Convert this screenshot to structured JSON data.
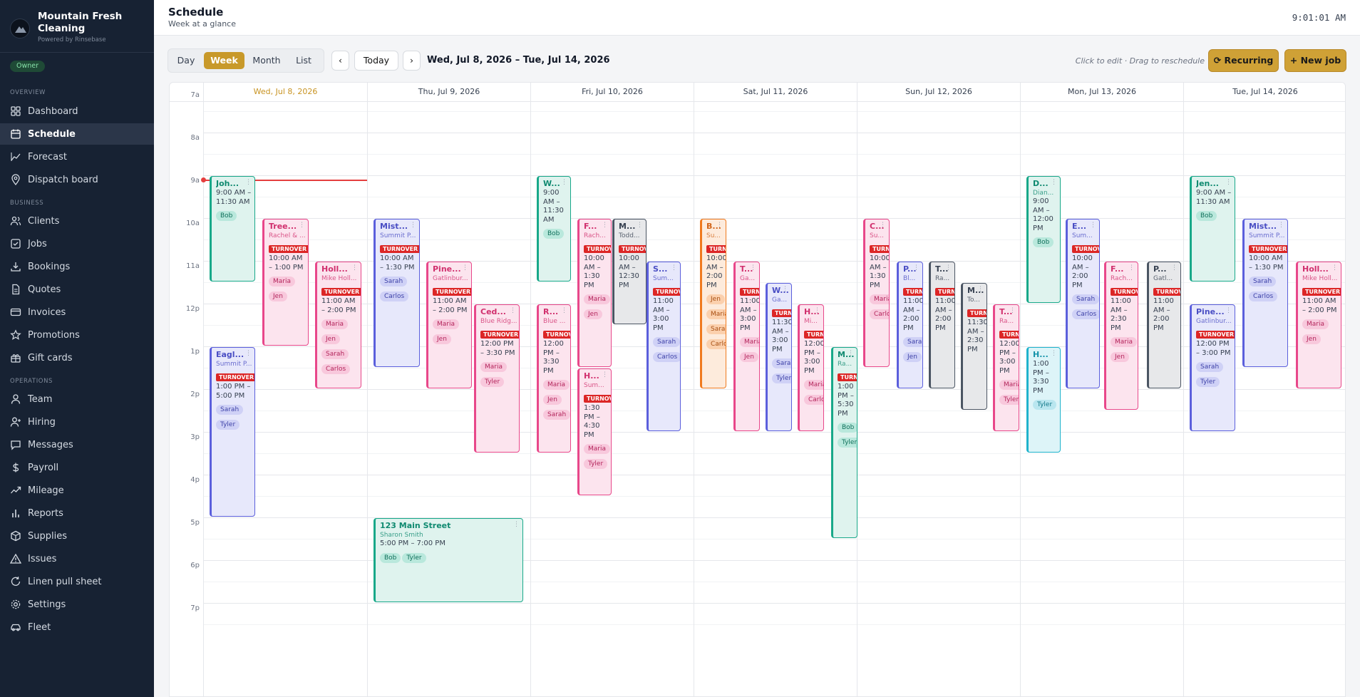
{
  "brand": {
    "name": "Mountain Fresh Cleaning",
    "sub": "Powered by Rinsebase",
    "role": "Owner"
  },
  "nav": {
    "overview_label": "OVERVIEW",
    "business_label": "BUSINESS",
    "operations_label": "OPERATIONS",
    "items": [
      {
        "label": "Dashboard",
        "icon": "grid-icon"
      },
      {
        "label": "Schedule",
        "icon": "calendar-icon",
        "active": true
      },
      {
        "label": "Forecast",
        "icon": "trend-icon"
      },
      {
        "label": "Dispatch board",
        "icon": "pin-icon"
      },
      {
        "label": "Clients",
        "icon": "users-icon"
      },
      {
        "label": "Jobs",
        "icon": "checkbox-icon"
      },
      {
        "label": "Bookings",
        "icon": "download-icon"
      },
      {
        "label": "Quotes",
        "icon": "document-icon"
      },
      {
        "label": "Invoices",
        "icon": "card-icon"
      },
      {
        "label": "Promotions",
        "icon": "star-icon"
      },
      {
        "label": "Gift cards",
        "icon": "gift-icon"
      },
      {
        "label": "Team",
        "icon": "user-icon"
      },
      {
        "label": "Hiring",
        "icon": "user-plus-icon"
      },
      {
        "label": "Messages",
        "icon": "message-icon"
      },
      {
        "label": "Payroll",
        "icon": "dollar-icon"
      },
      {
        "label": "Mileage",
        "icon": "route-icon"
      },
      {
        "label": "Reports",
        "icon": "bar-chart-icon"
      },
      {
        "label": "Supplies",
        "icon": "box-icon"
      },
      {
        "label": "Issues",
        "icon": "warning-icon"
      },
      {
        "label": "Linen pull sheet",
        "icon": "refresh-icon"
      },
      {
        "label": "Settings",
        "icon": "gear-icon"
      },
      {
        "label": "Fleet",
        "icon": "car-icon"
      }
    ]
  },
  "header": {
    "title": "Schedule",
    "subtitle": "Week at a glance",
    "clock": "9:01:01 AM"
  },
  "toolbar": {
    "views": [
      "Day",
      "Week",
      "Month",
      "List"
    ],
    "active_view": "Week",
    "prev": "‹",
    "today": "Today",
    "next": "›",
    "range": "Wed, Jul 8, 2026 – Tue, Jul 14, 2026",
    "hint": "Click to edit · Drag to reschedule",
    "recurring": "⟳ Recurring",
    "new_job": "+ New job"
  },
  "calendar": {
    "days": [
      "Wed, Jul 8, 2026",
      "Thu, Jul 9, 2026",
      "Fri, Jul 10, 2026",
      "Sat, Jul 11, 2026",
      "Sun, Jul 12, 2026",
      "Mon, Jul 13, 2026",
      "Tue, Jul 14, 2026"
    ],
    "today_index": 0,
    "hour_labels": [
      "7a",
      "8a",
      "9a",
      "10a",
      "11a",
      "12p",
      "1p",
      "2p",
      "3p",
      "4p",
      "5p",
      "6p",
      "7p"
    ],
    "turnover_label": "TURNOVER",
    "events": [
      {
        "day": 0,
        "title": "Joh...",
        "client": "",
        "time": "9:00 AM – 11:30 AM",
        "crew": [
          "Bob"
        ],
        "turnover": false,
        "color": "teal",
        "start": 9,
        "end": 11.5
      },
      {
        "day": 0,
        "title": "Tree...",
        "client": "Rachel & ...",
        "time": "10:00 AM – 1:00 PM",
        "crew": [
          "Maria",
          "Jen"
        ],
        "turnover": true,
        "color": "pink",
        "start": 10,
        "end": 13
      },
      {
        "day": 0,
        "title": "Holl...",
        "client": "Mike Holl...",
        "time": "11:00 AM – 2:00 PM",
        "crew": [
          "Maria",
          "Jen",
          "Sarah",
          "Carlos"
        ],
        "turnover": true,
        "color": "pink",
        "start": 11,
        "end": 14
      },
      {
        "day": 0,
        "title": "Eagl...",
        "client": "Summit P...",
        "time": "1:00 PM – 5:00 PM",
        "crew": [
          "Sarah",
          "Tyler"
        ],
        "turnover": true,
        "color": "blue",
        "start": 13,
        "end": 17
      },
      {
        "day": 1,
        "title": "Mist...",
        "client": "Summit P...",
        "time": "10:00 AM – 1:30 PM",
        "crew": [
          "Sarah",
          "Carlos"
        ],
        "turnover": true,
        "color": "blue",
        "start": 10,
        "end": 13.5
      },
      {
        "day": 1,
        "title": "Pine...",
        "client": "Gatlinbur...",
        "time": "11:00 AM – 2:00 PM",
        "crew": [
          "Maria",
          "Jen"
        ],
        "turnover": true,
        "color": "pink",
        "start": 11,
        "end": 14
      },
      {
        "day": 1,
        "title": "Ced...",
        "client": "Blue Ridg...",
        "time": "12:00 PM – 3:30 PM",
        "crew": [
          "Maria",
          "Tyler"
        ],
        "turnover": true,
        "color": "pink",
        "start": 12,
        "end": 15.5
      },
      {
        "day": 1,
        "title": "123 Main Street",
        "client": "Sharon Smith",
        "time": "5:00 PM – 7:00 PM",
        "crew": [
          "Bob",
          "Tyler"
        ],
        "turnover": false,
        "color": "teal",
        "start": 17,
        "end": 19
      },
      {
        "day": 2,
        "title": "W...",
        "client": "",
        "time": "9:00 AM – 11:30 AM",
        "crew": [
          "Bob"
        ],
        "turnover": false,
        "color": "teal",
        "start": 9,
        "end": 11.5
      },
      {
        "day": 2,
        "title": "F...",
        "client": "Rach...",
        "time": "10:00 AM – 1:30 PM",
        "crew": [
          "Maria",
          "Jen"
        ],
        "turnover": true,
        "color": "pink",
        "start": 10,
        "end": 13.5
      },
      {
        "day": 2,
        "title": "M...",
        "client": "Todd...",
        "time": "10:00 AM – 12:30 PM",
        "crew": [],
        "turnover": true,
        "color": "gray",
        "start": 10,
        "end": 12.5
      },
      {
        "day": 2,
        "title": "S...",
        "client": "Sum...",
        "time": "11:00 AM – 3:00 PM",
        "crew": [
          "Sarah",
          "Carlos"
        ],
        "turnover": true,
        "color": "blue",
        "start": 11,
        "end": 15
      },
      {
        "day": 2,
        "title": "R...",
        "client": "Blue ...",
        "time": "12:00 PM – 3:30 PM",
        "crew": [
          "Maria",
          "Jen",
          "Sarah"
        ],
        "turnover": true,
        "color": "pink",
        "start": 12,
        "end": 15.5
      },
      {
        "day": 2,
        "title": "H...",
        "client": "Sum...",
        "time": "1:30 PM – 4:30 PM",
        "crew": [
          "Maria",
          "Tyler"
        ],
        "turnover": true,
        "color": "pink",
        "start": 13.5,
        "end": 16.5
      },
      {
        "day": 3,
        "title": "B...",
        "client": "Su...",
        "time": "10:00 AM – 2:00 PM",
        "crew": [
          "Jen",
          "Maria",
          "Sarah",
          "Carlos"
        ],
        "turnover": true,
        "color": "orange",
        "start": 10,
        "end": 14
      },
      {
        "day": 3,
        "title": "T...",
        "client": "Ga...",
        "time": "11:00 AM – 3:00 PM",
        "crew": [
          "Maria",
          "Jen"
        ],
        "turnover": true,
        "color": "pink",
        "start": 11,
        "end": 15
      },
      {
        "day": 3,
        "title": "W...",
        "client": "Ga...",
        "time": "11:30 AM – 3:00 PM",
        "crew": [
          "Sarah",
          "Tyler"
        ],
        "turnover": true,
        "color": "blue",
        "start": 11.5,
        "end": 15
      },
      {
        "day": 3,
        "title": "H...",
        "client": "Mi...",
        "time": "12:00 PM – 3:00 PM",
        "crew": [
          "Maria",
          "Carlos"
        ],
        "turnover": true,
        "color": "pink",
        "start": 12,
        "end": 15
      },
      {
        "day": 3,
        "title": "M...",
        "client": "Ra...",
        "time": "1:00 PM – 5:30 PM",
        "crew": [
          "Bob",
          "Tyler"
        ],
        "turnover": true,
        "color": "teal",
        "start": 13,
        "end": 17.5
      },
      {
        "day": 4,
        "title": "C...",
        "client": "Su...",
        "time": "10:00 AM – 1:30 PM",
        "crew": [
          "Maria",
          "Carlos"
        ],
        "turnover": true,
        "color": "pink",
        "start": 10,
        "end": 13.5
      },
      {
        "day": 4,
        "title": "P...",
        "client": "Bl...",
        "time": "11:00 AM – 2:00 PM",
        "crew": [
          "Sarah",
          "Jen"
        ],
        "turnover": true,
        "color": "blue",
        "start": 11,
        "end": 14
      },
      {
        "day": 4,
        "title": "T...",
        "client": "Ra...",
        "time": "11:00 AM – 2:00 PM",
        "crew": [],
        "turnover": true,
        "color": "gray",
        "start": 11,
        "end": 14
      },
      {
        "day": 4,
        "title": "M...",
        "client": "To...",
        "time": "11:30 AM – 2:30 PM",
        "crew": [],
        "turnover": true,
        "color": "gray",
        "start": 11.5,
        "end": 14.5
      },
      {
        "day": 4,
        "title": "T...",
        "client": "Ra...",
        "time": "12:00 PM – 3:00 PM",
        "crew": [
          "Maria",
          "Tyler"
        ],
        "turnover": true,
        "color": "pink",
        "start": 12,
        "end": 15
      },
      {
        "day": 5,
        "title": "D...",
        "client": "Dian...",
        "time": "9:00 AM – 12:00 PM",
        "crew": [
          "Bob"
        ],
        "turnover": false,
        "color": "teal",
        "start": 9,
        "end": 12
      },
      {
        "day": 5,
        "title": "H...",
        "client": "",
        "time": "1:00 PM – 3:30 PM",
        "crew": [
          "Tyler"
        ],
        "turnover": false,
        "color": "cyan",
        "start": 13,
        "end": 15.5
      },
      {
        "day": 5,
        "title": "E...",
        "client": "Sum...",
        "time": "10:00 AM – 2:00 PM",
        "crew": [
          "Sarah",
          "Carlos"
        ],
        "turnover": true,
        "color": "blue",
        "start": 10,
        "end": 14
      },
      {
        "day": 5,
        "title": "F...",
        "client": "Rach...",
        "time": "11:00 AM – 2:30 PM",
        "crew": [
          "Maria",
          "Jen"
        ],
        "turnover": true,
        "color": "pink",
        "start": 11,
        "end": 14.5
      },
      {
        "day": 5,
        "title": "P...",
        "client": "Gatl...",
        "time": "11:00 AM – 2:00 PM",
        "crew": [],
        "turnover": true,
        "color": "gray",
        "start": 11,
        "end": 14
      },
      {
        "day": 6,
        "title": "Jen...",
        "client": "",
        "time": "9:00 AM – 11:30 AM",
        "crew": [
          "Bob"
        ],
        "turnover": false,
        "color": "teal",
        "start": 9,
        "end": 11.5
      },
      {
        "day": 6,
        "title": "Pine...",
        "client": "Gatlinbur...",
        "time": "12:00 PM – 3:00 PM",
        "crew": [
          "Sarah",
          "Tyler"
        ],
        "turnover": true,
        "color": "blue",
        "start": 12,
        "end": 15
      },
      {
        "day": 6,
        "title": "Mist...",
        "client": "Summit P...",
        "time": "10:00 AM – 1:30 PM",
        "crew": [
          "Sarah",
          "Carlos"
        ],
        "turnover": true,
        "color": "blue",
        "start": 10,
        "end": 13.5
      },
      {
        "day": 6,
        "title": "Holl...",
        "client": "Mike Holl...",
        "time": "11:00 AM – 2:00 PM",
        "crew": [
          "Maria",
          "Jen"
        ],
        "turnover": true,
        "color": "pink",
        "start": 11,
        "end": 14
      }
    ]
  }
}
